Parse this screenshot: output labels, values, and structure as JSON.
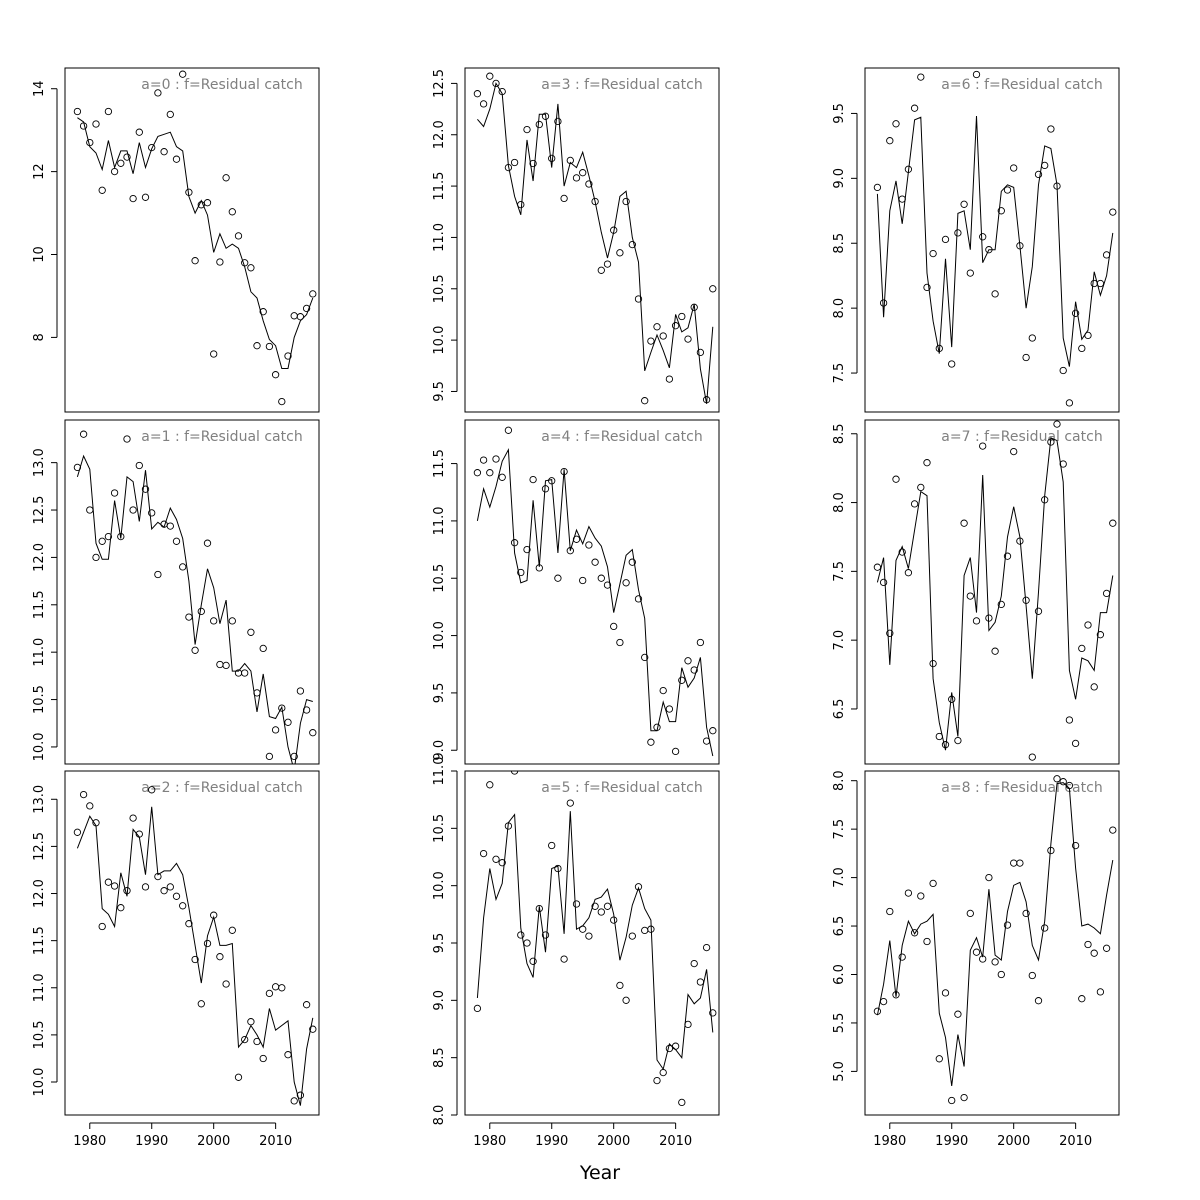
{
  "figure": {
    "xlabel": "Year"
  },
  "chart_data": [
    {
      "type": "scatter",
      "title": "a=0 : f=Residual catch",
      "xlim": [
        1976,
        2017
      ],
      "ylim": [
        6.2,
        14.5
      ],
      "x_ticks": [
        1980,
        1990,
        2000,
        2010
      ],
      "y_ticks": [
        8,
        10,
        12,
        14
      ],
      "show_x_axis": false,
      "years": [
        1978,
        1979,
        1980,
        1981,
        1982,
        1983,
        1984,
        1985,
        1986,
        1987,
        1988,
        1989,
        1990,
        1991,
        1992,
        1993,
        1994,
        1995,
        1996,
        1997,
        1998,
        1999,
        2000,
        2001,
        2002,
        2003,
        2004,
        2005,
        2006,
        2007,
        2008,
        2009,
        2010,
        2011,
        2012,
        2013,
        2014,
        2015,
        2016
      ],
      "observed": [
        13.45,
        13.1,
        12.7,
        13.15,
        11.55,
        13.45,
        12.0,
        12.2,
        12.35,
        11.35,
        12.95,
        11.38,
        12.58,
        13.9,
        12.48,
        13.38,
        12.3,
        14.35,
        11.5,
        9.85,
        11.2,
        11.25,
        7.6,
        9.82,
        11.85,
        11.03,
        10.45,
        9.8,
        9.68,
        7.8,
        8.62,
        7.78,
        7.1,
        6.45,
        7.55,
        8.52,
        8.5,
        8.7,
        9.05
      ],
      "fitted": [
        13.3,
        13.2,
        12.6,
        12.45,
        12.05,
        12.75,
        12.1,
        12.5,
        12.5,
        11.95,
        12.7,
        12.1,
        12.55,
        12.85,
        12.9,
        12.95,
        12.6,
        12.5,
        11.4,
        11.0,
        11.3,
        10.95,
        10.05,
        10.5,
        10.15,
        10.25,
        10.15,
        9.7,
        9.1,
        8.95,
        8.4,
        7.95,
        7.8,
        7.25,
        7.25,
        8.0,
        8.4,
        8.55,
        8.95
      ]
    },
    {
      "type": "scatter",
      "title": "a=3 : f=Residual catch",
      "xlim": [
        1976,
        2017
      ],
      "ylim": [
        9.3,
        12.65
      ],
      "x_ticks": [
        1980,
        1990,
        2000,
        2010
      ],
      "y_ticks": [
        9.5,
        10.0,
        10.5,
        11.0,
        11.5,
        12.0,
        12.5
      ],
      "show_x_axis": false,
      "years": [
        1978,
        1979,
        1980,
        1981,
        1982,
        1983,
        1984,
        1985,
        1986,
        1987,
        1988,
        1989,
        1990,
        1991,
        1992,
        1993,
        1994,
        1995,
        1996,
        1997,
        1998,
        1999,
        2000,
        2001,
        2002,
        2003,
        2004,
        2005,
        2006,
        2007,
        2008,
        2009,
        2010,
        2011,
        2012,
        2013,
        2014,
        2015,
        2016
      ],
      "observed": [
        12.4,
        12.3,
        12.57,
        12.5,
        12.42,
        11.68,
        11.73,
        11.32,
        12.05,
        11.72,
        12.1,
        12.18,
        11.77,
        12.13,
        11.38,
        11.75,
        11.58,
        11.63,
        11.52,
        11.35,
        10.68,
        10.74,
        11.07,
        10.85,
        11.35,
        10.93,
        10.4,
        9.41,
        9.99,
        10.13,
        10.04,
        9.62,
        10.14,
        10.23,
        10.01,
        10.32,
        9.88,
        9.42,
        10.5
      ],
      "fitted": [
        12.15,
        12.08,
        12.25,
        12.5,
        12.4,
        11.7,
        11.4,
        11.22,
        11.95,
        11.55,
        12.2,
        12.2,
        11.68,
        12.3,
        11.5,
        11.73,
        11.68,
        11.83,
        11.6,
        11.35,
        11.05,
        10.8,
        11.05,
        11.4,
        11.45,
        11.0,
        10.76,
        9.7,
        9.88,
        10.05,
        9.9,
        9.73,
        10.25,
        10.08,
        10.12,
        10.35,
        9.72,
        9.38,
        10.13
      ]
    },
    {
      "type": "scatter",
      "title": "a=6 : f=Residual catch",
      "xlim": [
        1976,
        2017
      ],
      "ylim": [
        7.2,
        9.85
      ],
      "x_ticks": [
        1980,
        1990,
        2000,
        2010
      ],
      "y_ticks": [
        7.5,
        8.0,
        8.5,
        9.0,
        9.5
      ],
      "show_x_axis": false,
      "years": [
        1978,
        1979,
        1980,
        1981,
        1982,
        1983,
        1984,
        1985,
        1986,
        1987,
        1988,
        1989,
        1990,
        1991,
        1992,
        1993,
        1994,
        1995,
        1996,
        1997,
        1998,
        1999,
        2000,
        2001,
        2002,
        2003,
        2004,
        2005,
        2006,
        2007,
        2008,
        2009,
        2010,
        2011,
        2012,
        2013,
        2014,
        2015,
        2016
      ],
      "observed": [
        8.93,
        8.04,
        9.29,
        9.42,
        8.84,
        9.07,
        9.54,
        9.78,
        8.16,
        8.42,
        7.69,
        8.53,
        7.57,
        8.58,
        8.8,
        8.27,
        9.8,
        8.55,
        8.45,
        8.11,
        8.75,
        8.91,
        9.08,
        8.48,
        7.62,
        7.77,
        9.03,
        9.1,
        9.38,
        8.94,
        7.52,
        7.27,
        7.96,
        7.69,
        7.79,
        8.19,
        8.19,
        8.41,
        8.74
      ],
      "fitted": [
        8.88,
        7.93,
        8.75,
        8.98,
        8.65,
        9.05,
        9.45,
        9.47,
        8.27,
        7.9,
        7.65,
        8.38,
        7.7,
        8.73,
        8.75,
        8.45,
        9.48,
        8.35,
        8.45,
        8.45,
        8.9,
        8.95,
        8.93,
        8.48,
        8.0,
        8.32,
        8.95,
        9.25,
        9.23,
        8.95,
        7.77,
        7.55,
        8.05,
        7.76,
        7.83,
        8.28,
        8.1,
        8.25,
        8.58
      ]
    },
    {
      "type": "scatter",
      "title": "a=1 : f=Residual catch",
      "xlim": [
        1976,
        2017
      ],
      "ylim": [
        9.82,
        13.45
      ],
      "x_ticks": [
        1980,
        1990,
        2000,
        2010
      ],
      "y_ticks": [
        10.0,
        10.5,
        11.0,
        11.5,
        12.0,
        12.5,
        13.0
      ],
      "show_x_axis": false,
      "years": [
        1978,
        1979,
        1980,
        1981,
        1982,
        1983,
        1984,
        1985,
        1986,
        1987,
        1988,
        1989,
        1990,
        1991,
        1992,
        1993,
        1994,
        1995,
        1996,
        1997,
        1998,
        1999,
        2000,
        2001,
        2002,
        2003,
        2004,
        2005,
        2006,
        2007,
        2008,
        2009,
        2010,
        2011,
        2012,
        2013,
        2014,
        2015,
        2016
      ],
      "observed": [
        12.95,
        13.3,
        12.5,
        12.0,
        12.17,
        12.22,
        12.68,
        12.22,
        13.25,
        12.5,
        12.97,
        12.72,
        12.47,
        11.82,
        12.35,
        12.33,
        12.17,
        11.9,
        11.37,
        11.02,
        11.43,
        12.15,
        11.33,
        10.87,
        10.86,
        11.33,
        10.78,
        10.78,
        11.21,
        10.57,
        11.04,
        9.9,
        10.18,
        10.41,
        10.26,
        9.9,
        10.59,
        10.39,
        10.15
      ],
      "fitted": [
        12.85,
        13.07,
        12.93,
        12.15,
        11.98,
        11.98,
        12.6,
        12.2,
        12.85,
        12.8,
        12.38,
        12.92,
        12.3,
        12.37,
        12.32,
        12.52,
        12.4,
        12.2,
        11.75,
        11.08,
        11.5,
        11.88,
        11.68,
        11.3,
        11.55,
        10.8,
        10.8,
        10.88,
        10.8,
        10.37,
        10.77,
        10.32,
        10.3,
        10.42,
        10.0,
        9.75,
        10.25,
        10.5,
        10.48
      ]
    },
    {
      "type": "scatter",
      "title": "a=4 : f=Residual catch",
      "xlim": [
        1976,
        2017
      ],
      "ylim": [
        8.88,
        11.88
      ],
      "x_ticks": [
        1980,
        1990,
        2000,
        2010
      ],
      "y_ticks": [
        9.0,
        9.5,
        10.0,
        10.5,
        11.0,
        11.5
      ],
      "show_x_axis": false,
      "years": [
        1978,
        1979,
        1980,
        1981,
        1982,
        1983,
        1984,
        1985,
        1986,
        1987,
        1988,
        1989,
        1990,
        1991,
        1992,
        1993,
        1994,
        1995,
        1996,
        1997,
        1998,
        1999,
        2000,
        2001,
        2002,
        2003,
        2004,
        2005,
        2006,
        2007,
        2008,
        2009,
        2010,
        2011,
        2012,
        2013,
        2014,
        2015,
        2016
      ],
      "observed": [
        11.42,
        11.53,
        11.42,
        11.54,
        11.38,
        11.79,
        10.81,
        10.55,
        10.75,
        11.36,
        10.59,
        11.28,
        11.35,
        10.5,
        11.43,
        10.74,
        10.84,
        10.48,
        10.79,
        10.64,
        10.5,
        10.44,
        10.08,
        9.94,
        10.46,
        10.64,
        10.32,
        9.81,
        9.07,
        9.2,
        9.52,
        9.36,
        8.99,
        9.61,
        9.78,
        9.7,
        9.94,
        9.08,
        9.17
      ],
      "fitted": [
        11.0,
        11.28,
        11.12,
        11.3,
        11.52,
        11.62,
        10.72,
        10.46,
        10.48,
        11.18,
        10.6,
        11.35,
        11.36,
        10.72,
        11.45,
        10.74,
        10.92,
        10.8,
        10.95,
        10.85,
        10.78,
        10.6,
        10.2,
        10.45,
        10.7,
        10.75,
        10.4,
        10.15,
        9.17,
        9.17,
        9.42,
        9.25,
        9.25,
        9.72,
        9.55,
        9.63,
        9.81,
        9.2,
        8.95
      ]
    },
    {
      "type": "scatter",
      "title": "a=7 : f=Residual catch",
      "xlim": [
        1976,
        2017
      ],
      "ylim": [
        6.1,
        8.6
      ],
      "x_ticks": [
        1980,
        1990,
        2000,
        2010
      ],
      "y_ticks": [
        6.5,
        7.0,
        7.5,
        8.0,
        8.5
      ],
      "show_x_axis": false,
      "years": [
        1978,
        1979,
        1980,
        1981,
        1982,
        1983,
        1984,
        1985,
        1986,
        1987,
        1988,
        1989,
        1990,
        1991,
        1992,
        1993,
        1994,
        1995,
        1996,
        1997,
        1998,
        1999,
        2000,
        2001,
        2002,
        2003,
        2004,
        2005,
        2006,
        2007,
        2008,
        2009,
        2010,
        2011,
        2012,
        2013,
        2014,
        2015,
        2016
      ],
      "observed": [
        7.53,
        7.42,
        7.05,
        8.17,
        7.64,
        7.49,
        7.99,
        8.11,
        8.29,
        6.83,
        6.3,
        6.24,
        6.57,
        6.27,
        7.85,
        7.32,
        7.14,
        8.41,
        7.16,
        6.92,
        7.26,
        7.61,
        8.37,
        7.72,
        7.29,
        6.15,
        7.21,
        8.02,
        8.44,
        8.57,
        8.28,
        6.42,
        6.25,
        6.94,
        7.11,
        6.66,
        7.04,
        7.34,
        7.85
      ],
      "fitted": [
        7.42,
        7.6,
        6.82,
        7.58,
        7.68,
        7.52,
        7.8,
        8.08,
        8.05,
        6.72,
        6.4,
        6.2,
        6.62,
        6.3,
        7.47,
        7.6,
        7.2,
        8.2,
        7.07,
        7.13,
        7.32,
        7.75,
        7.97,
        7.75,
        7.25,
        6.72,
        7.35,
        8.05,
        8.47,
        8.45,
        8.15,
        6.78,
        6.57,
        6.87,
        6.85,
        6.78,
        7.2,
        7.2,
        7.47
      ]
    },
    {
      "type": "scatter",
      "title": "a=2 : f=Residual catch",
      "xlim": [
        1976,
        2017
      ],
      "ylim": [
        9.65,
        13.3
      ],
      "x_ticks": [
        1980,
        1990,
        2000,
        2010
      ],
      "y_ticks": [
        10.0,
        10.5,
        11.0,
        11.5,
        12.0,
        12.5,
        13.0
      ],
      "show_x_axis": true,
      "years": [
        1978,
        1979,
        1980,
        1981,
        1982,
        1983,
        1984,
        1985,
        1986,
        1987,
        1988,
        1989,
        1990,
        1991,
        1992,
        1993,
        1994,
        1995,
        1996,
        1997,
        1998,
        1999,
        2000,
        2001,
        2002,
        2003,
        2004,
        2005,
        2006,
        2007,
        2008,
        2009,
        2010,
        2011,
        2012,
        2013,
        2014,
        2015,
        2016
      ],
      "observed": [
        12.65,
        13.05,
        12.93,
        12.75,
        11.65,
        12.12,
        12.08,
        11.85,
        12.03,
        12.8,
        12.63,
        12.07,
        13.1,
        12.18,
        12.03,
        12.07,
        11.97,
        11.87,
        11.68,
        11.3,
        10.83,
        11.47,
        11.77,
        11.33,
        11.04,
        11.61,
        10.05,
        10.45,
        10.64,
        10.43,
        10.25,
        10.94,
        11.01,
        11.0,
        10.29,
        9.8,
        9.86,
        10.82,
        10.56
      ],
      "fitted": [
        12.48,
        12.65,
        12.82,
        12.72,
        11.84,
        11.78,
        11.65,
        12.22,
        11.97,
        12.68,
        12.6,
        12.2,
        12.92,
        12.2,
        12.24,
        12.24,
        12.32,
        12.2,
        11.85,
        11.45,
        11.05,
        11.55,
        11.75,
        11.45,
        11.45,
        11.47,
        10.37,
        10.45,
        10.6,
        10.5,
        10.37,
        10.78,
        10.55,
        10.6,
        10.65,
        10.0,
        9.75,
        10.35,
        10.68
      ]
    },
    {
      "type": "scatter",
      "title": "a=5 : f=Residual catch",
      "xlim": [
        1976,
        2017
      ],
      "ylim": [
        8.0,
        11.0
      ],
      "x_ticks": [
        1980,
        1990,
        2000,
        2010
      ],
      "y_ticks": [
        8.0,
        8.5,
        9.0,
        9.5,
        10.0,
        10.5,
        11.0
      ],
      "show_x_axis": true,
      "years": [
        1978,
        1979,
        1980,
        1981,
        1982,
        1983,
        1984,
        1985,
        1986,
        1987,
        1988,
        1989,
        1990,
        1991,
        1992,
        1993,
        1994,
        1995,
        1996,
        1997,
        1998,
        1999,
        2000,
        2001,
        2002,
        2003,
        2004,
        2005,
        2006,
        2007,
        2008,
        2009,
        2010,
        2011,
        2012,
        2013,
        2014,
        2015,
        2016
      ],
      "observed": [
        8.93,
        10.28,
        10.88,
        10.23,
        10.2,
        10.52,
        11.0,
        9.57,
        9.5,
        9.34,
        9.8,
        9.57,
        10.35,
        10.15,
        9.36,
        10.72,
        9.84,
        9.62,
        9.56,
        9.82,
        9.77,
        9.82,
        9.7,
        9.13,
        9.0,
        9.56,
        9.99,
        9.61,
        9.62,
        8.3,
        8.37,
        8.58,
        8.6,
        8.11,
        8.79,
        9.32,
        9.16,
        9.46,
        8.89
      ],
      "fitted": [
        9.02,
        9.72,
        10.15,
        9.88,
        10.02,
        10.55,
        10.62,
        9.63,
        9.32,
        9.2,
        9.82,
        9.42,
        10.15,
        10.17,
        9.58,
        10.65,
        9.62,
        9.65,
        9.72,
        9.88,
        9.9,
        9.97,
        9.75,
        9.35,
        9.55,
        9.83,
        9.98,
        9.8,
        9.7,
        8.48,
        8.4,
        8.62,
        8.57,
        8.5,
        9.05,
        8.97,
        9.02,
        9.27,
        8.72
      ]
    },
    {
      "type": "scatter",
      "title": "a=8 : f=Residual catch",
      "xlim": [
        1976,
        2017
      ],
      "ylim": [
        4.55,
        8.1
      ],
      "x_ticks": [
        1980,
        1990,
        2000,
        2010
      ],
      "y_ticks": [
        5.0,
        5.5,
        6.0,
        6.5,
        7.0,
        7.5,
        8.0
      ],
      "show_x_axis": true,
      "years": [
        1978,
        1979,
        1980,
        1981,
        1982,
        1983,
        1984,
        1985,
        1986,
        1987,
        1988,
        1989,
        1990,
        1991,
        1992,
        1993,
        1994,
        1995,
        1996,
        1997,
        1998,
        1999,
        2000,
        2001,
        2002,
        2003,
        2004,
        2005,
        2006,
        2007,
        2008,
        2009,
        2010,
        2011,
        2012,
        2013,
        2014,
        2015,
        2016
      ],
      "observed": [
        5.62,
        5.72,
        6.65,
        5.79,
        6.18,
        6.84,
        6.43,
        6.81,
        6.34,
        6.94,
        5.13,
        5.81,
        4.7,
        5.59,
        4.73,
        6.63,
        6.23,
        6.16,
        7.0,
        6.13,
        6.0,
        6.51,
        7.15,
        7.15,
        6.63,
        5.99,
        5.73,
        6.48,
        7.28,
        8.02,
        7.99,
        7.95,
        7.33,
        5.75,
        6.31,
        6.22,
        5.82,
        6.27,
        7.49
      ],
      "fitted": [
        5.58,
        5.9,
        6.35,
        5.77,
        6.3,
        6.55,
        6.42,
        6.52,
        6.55,
        6.62,
        5.6,
        5.35,
        4.85,
        5.38,
        5.05,
        6.25,
        6.38,
        6.18,
        6.88,
        6.2,
        6.15,
        6.65,
        6.92,
        6.95,
        6.75,
        6.3,
        6.15,
        6.55,
        7.35,
        7.97,
        7.98,
        7.92,
        7.1,
        6.5,
        6.52,
        6.48,
        6.42,
        6.82,
        7.18
      ]
    }
  ]
}
